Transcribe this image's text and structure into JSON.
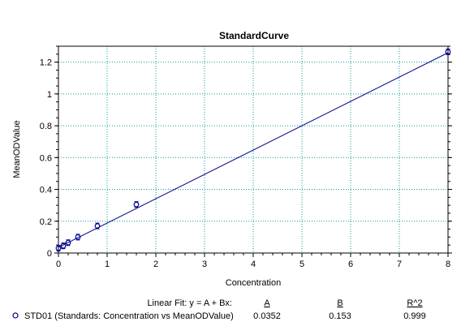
{
  "chart_data": {
    "type": "scatter",
    "title": "StandardCurve",
    "xlabel": "Concentration",
    "ylabel": "MeanODValue",
    "xlim": [
      0,
      8
    ],
    "ylim": [
      0,
      1.3
    ],
    "x_ticks": [
      "0",
      "1",
      "2",
      "3",
      "4",
      "5",
      "6",
      "7",
      "8"
    ],
    "y_ticks": [
      "0",
      "0.2",
      "0.4",
      "0.6",
      "0.8",
      "1",
      "1.2"
    ],
    "grid": true,
    "series": [
      {
        "name": "STD01 (Standards: Concentration vs MeanODValue)",
        "color": "#00008b",
        "marker": "open-circle",
        "x": [
          0,
          0.1,
          0.2,
          0.4,
          0.8,
          1.6,
          8
        ],
        "y": [
          0.03,
          0.045,
          0.065,
          0.1,
          0.17,
          0.305,
          1.265
        ]
      }
    ],
    "fit": {
      "label": "Linear Fit: y = A + Bx:",
      "headers": [
        "A",
        "B",
        "R^2"
      ],
      "values": [
        "0.0352",
        "0.153",
        "0.999"
      ],
      "A": 0.0352,
      "B": 0.153,
      "color": "#00008b"
    },
    "gridline_color": "#00a0a0"
  }
}
